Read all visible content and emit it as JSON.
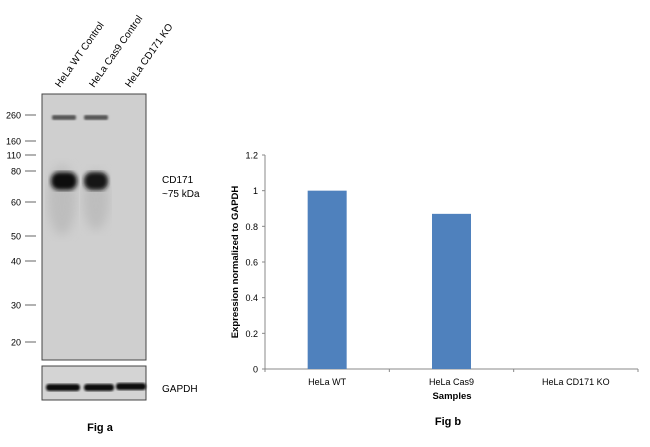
{
  "fig_a": {
    "caption": "Fig a",
    "lanes": [
      "HeLa WT Control",
      "HeLa Cas9 Control",
      "HeLa CD171 KO"
    ],
    "markers": [
      "260",
      "160",
      "110",
      "80",
      "60",
      "50",
      "40",
      "30",
      "20"
    ],
    "band_label": "CD171",
    "band_size": "~75 kDa",
    "loading_control": "GAPDH"
  },
  "chart_data": {
    "type": "bar",
    "title": "Fig b",
    "categories": [
      "HeLa WT",
      "HeLa  Cas9",
      "HeLa CD171 KO"
    ],
    "values": [
      1.0,
      0.87,
      0.0
    ],
    "xlabel": "Samples",
    "ylabel": "Expression  normalized to GAPDH",
    "ylim": [
      0,
      1.2
    ],
    "yticks": [
      "0",
      "0.2",
      "0.4",
      "0.6",
      "0.8",
      "1",
      "1.2"
    ],
    "grid": false,
    "bar_color": "#4f81bd"
  }
}
